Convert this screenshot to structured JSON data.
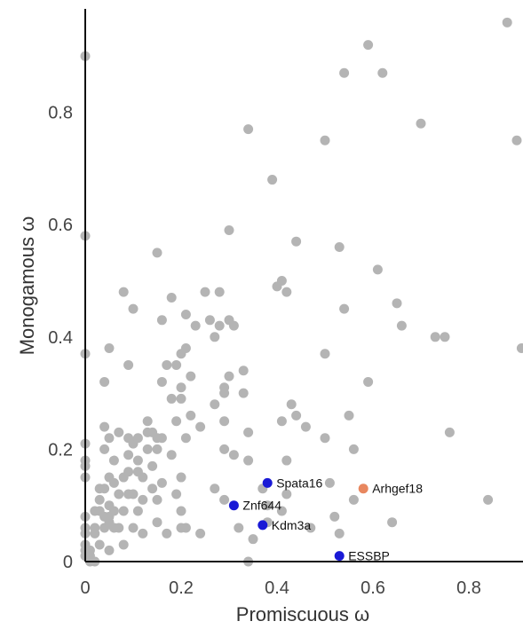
{
  "chart_data": {
    "type": "scatter",
    "xlabel": "Promiscuous ω",
    "ylabel": "Monogamous ω",
    "xlim": [
      0,
      0.91
    ],
    "ylim": [
      0,
      0.96
    ],
    "xticks": [
      0,
      0.2,
      0.4,
      0.6,
      0.8
    ],
    "yticks": [
      0,
      0.2,
      0.4,
      0.6,
      0.8
    ],
    "xtick_labels": [
      "0",
      "0.2",
      "0.4",
      "0.6",
      "0.8"
    ],
    "ytick_labels": [
      "0",
      "0.2",
      "0.4",
      "0.6",
      "0.8"
    ],
    "grid": false,
    "colors": {
      "background": "#cccccc",
      "gray": "#b4b4b4",
      "blue": "#1a1ad6",
      "orange": "#e8875f"
    },
    "series": [
      {
        "color": "gray",
        "points": [
          [
            0.0,
            0.9
          ],
          [
            0.0,
            0.58
          ],
          [
            0.0,
            0.37
          ],
          [
            0.0,
            0.21
          ],
          [
            0.0,
            0.18
          ],
          [
            0.0,
            0.17
          ],
          [
            0.0,
            0.15
          ],
          [
            0.0,
            0.08
          ],
          [
            0.0,
            0.06
          ],
          [
            0.0,
            0.05
          ],
          [
            0.0,
            0.03
          ],
          [
            0.0,
            0.02
          ],
          [
            0.0,
            0.01
          ],
          [
            0.01,
            0.02
          ],
          [
            0.01,
            0.01
          ],
          [
            0.01,
            0.0
          ],
          [
            0.02,
            0.06
          ],
          [
            0.02,
            0.05
          ],
          [
            0.02,
            0.0
          ],
          [
            0.02,
            0.09
          ],
          [
            0.03,
            0.03
          ],
          [
            0.03,
            0.09
          ],
          [
            0.03,
            0.11
          ],
          [
            0.03,
            0.13
          ],
          [
            0.04,
            0.32
          ],
          [
            0.04,
            0.24
          ],
          [
            0.04,
            0.2
          ],
          [
            0.04,
            0.13
          ],
          [
            0.04,
            0.08
          ],
          [
            0.04,
            0.06
          ],
          [
            0.05,
            0.38
          ],
          [
            0.05,
            0.22
          ],
          [
            0.05,
            0.15
          ],
          [
            0.05,
            0.1
          ],
          [
            0.05,
            0.08
          ],
          [
            0.05,
            0.07
          ],
          [
            0.05,
            0.02
          ],
          [
            0.06,
            0.18
          ],
          [
            0.06,
            0.14
          ],
          [
            0.06,
            0.06
          ],
          [
            0.06,
            0.09
          ],
          [
            0.07,
            0.23
          ],
          [
            0.07,
            0.12
          ],
          [
            0.07,
            0.06
          ],
          [
            0.08,
            0.48
          ],
          [
            0.08,
            0.03
          ],
          [
            0.08,
            0.09
          ],
          [
            0.08,
            0.15
          ],
          [
            0.09,
            0.35
          ],
          [
            0.09,
            0.22
          ],
          [
            0.09,
            0.19
          ],
          [
            0.09,
            0.16
          ],
          [
            0.09,
            0.12
          ],
          [
            0.1,
            0.45
          ],
          [
            0.1,
            0.21
          ],
          [
            0.1,
            0.12
          ],
          [
            0.1,
            0.06
          ],
          [
            0.11,
            0.22
          ],
          [
            0.11,
            0.18
          ],
          [
            0.11,
            0.16
          ],
          [
            0.11,
            0.09
          ],
          [
            0.12,
            0.15
          ],
          [
            0.12,
            0.11
          ],
          [
            0.12,
            0.05
          ],
          [
            0.13,
            0.25
          ],
          [
            0.13,
            0.23
          ],
          [
            0.13,
            0.2
          ],
          [
            0.14,
            0.23
          ],
          [
            0.14,
            0.17
          ],
          [
            0.14,
            0.13
          ],
          [
            0.15,
            0.55
          ],
          [
            0.15,
            0.22
          ],
          [
            0.15,
            0.2
          ],
          [
            0.15,
            0.11
          ],
          [
            0.15,
            0.07
          ],
          [
            0.16,
            0.43
          ],
          [
            0.16,
            0.32
          ],
          [
            0.16,
            0.22
          ],
          [
            0.16,
            0.14
          ],
          [
            0.17,
            0.35
          ],
          [
            0.17,
            0.05
          ],
          [
            0.18,
            0.47
          ],
          [
            0.18,
            0.29
          ],
          [
            0.18,
            0.19
          ],
          [
            0.19,
            0.35
          ],
          [
            0.19,
            0.25
          ],
          [
            0.19,
            0.12
          ],
          [
            0.2,
            0.37
          ],
          [
            0.2,
            0.31
          ],
          [
            0.2,
            0.29
          ],
          [
            0.2,
            0.15
          ],
          [
            0.2,
            0.09
          ],
          [
            0.2,
            0.06
          ],
          [
            0.21,
            0.44
          ],
          [
            0.21,
            0.38
          ],
          [
            0.21,
            0.22
          ],
          [
            0.21,
            0.06
          ],
          [
            0.22,
            0.33
          ],
          [
            0.22,
            0.26
          ],
          [
            0.23,
            0.42
          ],
          [
            0.24,
            0.24
          ],
          [
            0.24,
            0.05
          ],
          [
            0.25,
            0.48
          ],
          [
            0.26,
            0.43
          ],
          [
            0.27,
            0.4
          ],
          [
            0.27,
            0.28
          ],
          [
            0.27,
            0.13
          ],
          [
            0.28,
            0.48
          ],
          [
            0.28,
            0.42
          ],
          [
            0.29,
            0.31
          ],
          [
            0.29,
            0.3
          ],
          [
            0.29,
            0.2
          ],
          [
            0.29,
            0.25
          ],
          [
            0.29,
            0.11
          ],
          [
            0.3,
            0.59
          ],
          [
            0.3,
            0.43
          ],
          [
            0.3,
            0.33
          ],
          [
            0.31,
            0.42
          ],
          [
            0.31,
            0.19
          ],
          [
            0.32,
            0.06
          ],
          [
            0.33,
            0.34
          ],
          [
            0.33,
            0.3
          ],
          [
            0.34,
            0.77
          ],
          [
            0.34,
            0.23
          ],
          [
            0.34,
            0.18
          ],
          [
            0.34,
            0.0
          ],
          [
            0.35,
            0.04
          ],
          [
            0.37,
            0.13
          ],
          [
            0.38,
            0.07
          ],
          [
            0.38,
            0.1
          ],
          [
            0.39,
            0.68
          ],
          [
            0.4,
            0.49
          ],
          [
            0.41,
            0.5
          ],
          [
            0.41,
            0.25
          ],
          [
            0.41,
            0.09
          ],
          [
            0.42,
            0.48
          ],
          [
            0.42,
            0.18
          ],
          [
            0.42,
            0.12
          ],
          [
            0.43,
            0.28
          ],
          [
            0.44,
            0.57
          ],
          [
            0.44,
            0.26
          ],
          [
            0.46,
            0.24
          ],
          [
            0.47,
            0.06
          ],
          [
            0.5,
            0.75
          ],
          [
            0.5,
            0.37
          ],
          [
            0.5,
            0.22
          ],
          [
            0.51,
            0.14
          ],
          [
            0.52,
            0.08
          ],
          [
            0.53,
            0.56
          ],
          [
            0.53,
            0.05
          ],
          [
            0.54,
            0.87
          ],
          [
            0.54,
            0.45
          ],
          [
            0.55,
            0.26
          ],
          [
            0.56,
            0.11
          ],
          [
            0.56,
            0.2
          ],
          [
            0.59,
            0.92
          ],
          [
            0.59,
            0.32
          ],
          [
            0.61,
            0.52
          ],
          [
            0.62,
            0.87
          ],
          [
            0.64,
            0.07
          ],
          [
            0.65,
            0.46
          ],
          [
            0.66,
            0.42
          ],
          [
            0.7,
            0.78
          ],
          [
            0.73,
            0.4
          ],
          [
            0.75,
            0.4
          ],
          [
            0.76,
            0.23
          ],
          [
            0.84,
            0.11
          ],
          [
            0.88,
            0.96
          ],
          [
            0.9,
            0.75
          ],
          [
            0.91,
            0.38
          ]
        ]
      },
      {
        "color": "blue",
        "points": [
          [
            0.38,
            0.14
          ],
          [
            0.31,
            0.1
          ],
          [
            0.37,
            0.065
          ],
          [
            0.53,
            0.01
          ]
        ],
        "labels": [
          "Spata16",
          "Znf644",
          "Kdm3a",
          "ESSBP"
        ]
      },
      {
        "color": "orange",
        "points": [
          [
            0.58,
            0.13
          ]
        ],
        "labels": [
          "Arhgef18"
        ]
      }
    ]
  }
}
